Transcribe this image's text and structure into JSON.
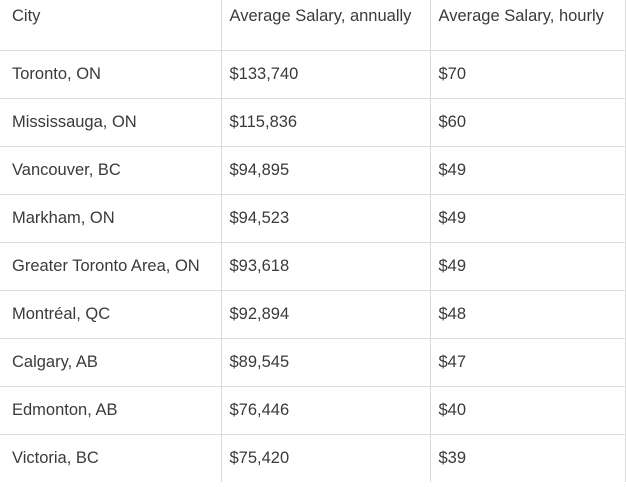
{
  "table": {
    "headers": [
      "City",
      "Average Salary, annually",
      "Average Salary, hourly"
    ],
    "rows": [
      [
        "Toronto, ON",
        "$133,740",
        "$70"
      ],
      [
        "Mississauga, ON",
        "$115,836",
        "$60"
      ],
      [
        "Vancouver, BC",
        "$94,895",
        "$49"
      ],
      [
        "Markham, ON",
        "$94,523",
        "$49"
      ],
      [
        "Greater Toronto Area, ON",
        "$93,618",
        "$49"
      ],
      [
        "Montréal, QC",
        "$92,894",
        "$48"
      ],
      [
        "Calgary, AB",
        "$89,545",
        "$47"
      ],
      [
        "Edmonton, AB",
        "$76,446",
        "$40"
      ],
      [
        "Victoria, BC",
        "$75,420",
        "$39"
      ]
    ]
  },
  "colors": {
    "text": "#3a3a3a",
    "border": "#dcdcdc",
    "background": "#ffffff"
  }
}
